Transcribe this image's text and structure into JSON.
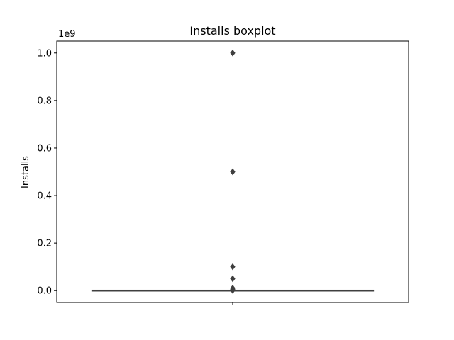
{
  "chart_data": {
    "type": "boxplot",
    "title": "Installs boxplot",
    "xlabel": "",
    "ylabel": "Installs",
    "y_offset_label": "1e9",
    "ylim": [
      -0.05,
      1.05
    ],
    "y_ticks": [
      0.0,
      0.2,
      0.4,
      0.6,
      0.8,
      1.0
    ],
    "y_tick_labels": [
      "0.0",
      "0.2",
      "0.4",
      "0.6",
      "0.8",
      "1.0"
    ],
    "grid": false,
    "colors": {
      "box": "#3274a1",
      "mark": "#3f3f3f"
    },
    "box": {
      "q1": 0.0,
      "median": 0.0,
      "q3": 0.0,
      "whisker_low": 0.0,
      "whisker_high": 0.0
    },
    "outliers": [
      1.0,
      0.5,
      0.1,
      0.05,
      0.01,
      0.005,
      0.001
    ]
  }
}
